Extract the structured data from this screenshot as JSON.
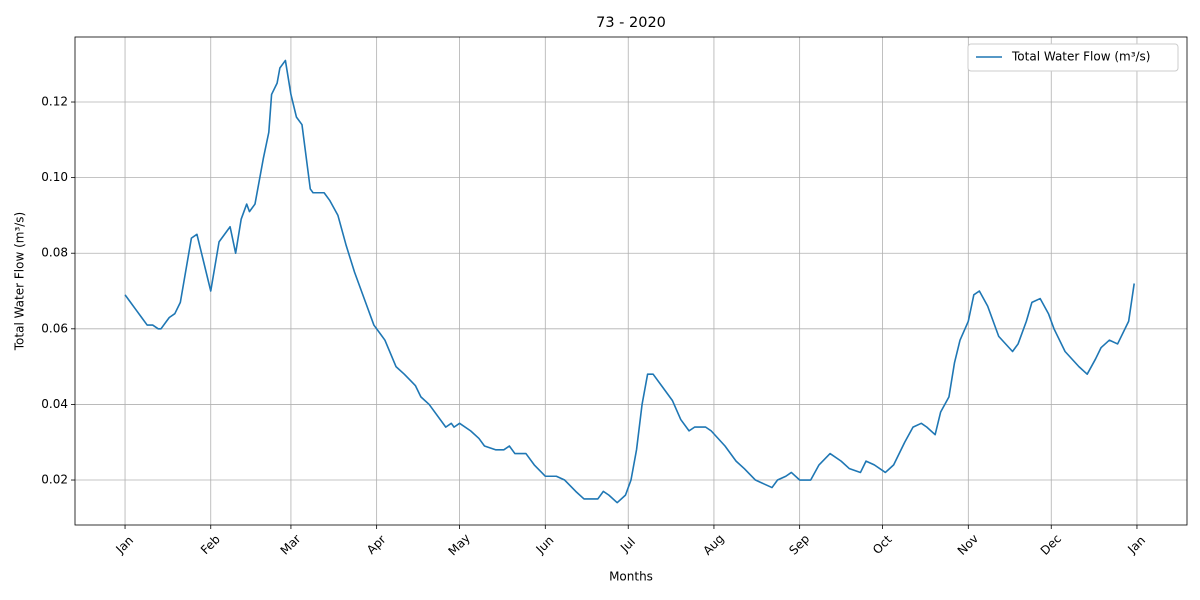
{
  "chart_data": {
    "type": "line",
    "title": "73 - 2020",
    "x_label": "Months",
    "y_label": "Total Water Flow (m³/s)",
    "x": [
      0,
      2,
      4,
      6,
      8,
      10,
      12,
      13,
      15,
      16,
      18,
      20,
      24,
      26,
      27,
      28,
      31,
      34,
      38,
      40,
      42,
      44,
      45,
      47,
      50,
      52,
      53,
      55,
      56,
      58,
      60,
      62,
      64,
      67,
      68,
      72,
      74,
      77,
      80,
      83,
      87,
      90,
      94,
      98,
      101,
      105,
      107,
      110,
      116,
      118,
      119,
      121,
      125,
      128,
      130,
      134,
      137,
      139,
      141,
      145,
      148,
      152,
      156,
      159,
      163,
      166,
      171,
      173,
      175,
      178,
      181,
      183,
      185,
      187,
      189,
      191,
      194,
      198,
      201,
      204,
      206,
      208,
      210,
      212,
      217,
      221,
      224,
      228,
      231,
      234,
      236,
      239,
      241,
      244,
      248,
      251,
      255,
      259,
      262,
      266,
      268,
      271,
      275,
      278,
      282,
      285,
      288,
      290,
      293,
      295,
      298,
      300,
      302,
      305,
      307,
      309,
      312,
      316,
      321,
      323,
      326,
      328,
      331,
      334,
      336,
      340,
      345,
      348,
      351,
      353,
      356,
      359,
      363,
      365
    ],
    "series": [
      {
        "name": "Total Water Flow (m³/s)",
        "color": "#1f77b4",
        "values": [
          0.069,
          0.067,
          0.065,
          0.063,
          0.061,
          0.061,
          0.06,
          0.06,
          0.062,
          0.063,
          0.064,
          0.067,
          0.084,
          0.085,
          0.082,
          0.079,
          0.07,
          0.083,
          0.087,
          0.08,
          0.089,
          0.093,
          0.091,
          0.093,
          0.105,
          0.112,
          0.122,
          0.125,
          0.129,
          0.131,
          0.122,
          0.116,
          0.114,
          0.097,
          0.096,
          0.096,
          0.094,
          0.09,
          0.082,
          0.075,
          0.067,
          0.061,
          0.057,
          0.05,
          0.048,
          0.045,
          0.042,
          0.04,
          0.034,
          0.035,
          0.034,
          0.035,
          0.033,
          0.031,
          0.029,
          0.028,
          0.028,
          0.029,
          0.027,
          0.027,
          0.024,
          0.021,
          0.021,
          0.02,
          0.017,
          0.015,
          0.015,
          0.017,
          0.016,
          0.014,
          0.016,
          0.02,
          0.028,
          0.04,
          0.048,
          0.048,
          0.045,
          0.041,
          0.036,
          0.033,
          0.034,
          0.034,
          0.034,
          0.033,
          0.029,
          0.025,
          0.023,
          0.02,
          0.019,
          0.018,
          0.02,
          0.021,
          0.022,
          0.02,
          0.02,
          0.024,
          0.027,
          0.025,
          0.023,
          0.022,
          0.025,
          0.024,
          0.022,
          0.024,
          0.03,
          0.034,
          0.035,
          0.034,
          0.032,
          0.038,
          0.042,
          0.051,
          0.057,
          0.062,
          0.069,
          0.07,
          0.066,
          0.058,
          0.054,
          0.056,
          0.062,
          0.067,
          0.068,
          0.064,
          0.06,
          0.054,
          0.05,
          0.048,
          0.052,
          0.055,
          0.057,
          0.056,
          0.062,
          0.072
        ]
      }
    ],
    "xlim": [
      -18.1,
      384.1
    ],
    "ylim": [
      0.0081,
      0.1372
    ],
    "xticks": [
      {
        "value": 0,
        "label": "Jan"
      },
      {
        "value": 31,
        "label": "Feb"
      },
      {
        "value": 60,
        "label": "Mar"
      },
      {
        "value": 91,
        "label": "Apr"
      },
      {
        "value": 121,
        "label": "May"
      },
      {
        "value": 152,
        "label": "Jun"
      },
      {
        "value": 182,
        "label": "Jul"
      },
      {
        "value": 213,
        "label": "Aug"
      },
      {
        "value": 244,
        "label": "Sep"
      },
      {
        "value": 274,
        "label": "Oct"
      },
      {
        "value": 305,
        "label": "Nov"
      },
      {
        "value": 335,
        "label": "Dec"
      },
      {
        "value": 366,
        "label": "Jan"
      }
    ],
    "yticks": [
      0.02,
      0.04,
      0.06,
      0.08,
      {
        "value": 0.1,
        "label": "0.10"
      },
      {
        "value": 0.12,
        "label": "0.12"
      }
    ],
    "grid": true,
    "legend_position": "upper-right"
  }
}
